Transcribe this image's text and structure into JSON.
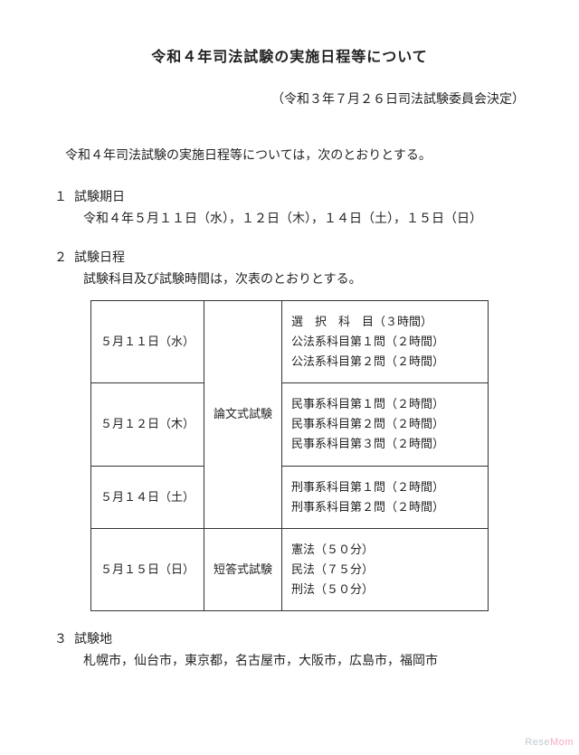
{
  "title": "令和４年司法試験の実施日程等について",
  "subtitle": "（令和３年７月２６日司法試験委員会決定）",
  "intro": "令和４年司法試験の実施日程等については，次のとおりとする。",
  "section1": {
    "num": "１",
    "head": "試験期日",
    "body": "令和４年５月１１日（水），１２日（木），１４日（土），１５日（日）"
  },
  "section2": {
    "num": "２",
    "head": "試験日程",
    "body": "試験科目及び試験時間は，次表のとおりとする。"
  },
  "schedule": {
    "rows": [
      {
        "date": "５月１１日（水）",
        "subjects": [
          "選　択　科　目（３時間）",
          "公法系科目第１問（２時間）",
          "公法系科目第２問（２時間）"
        ]
      },
      {
        "date": "５月１２日（木）",
        "type": "論文式試験",
        "subjects": [
          "民事系科目第１問（２時間）",
          "民事系科目第２問（２時間）",
          "民事系科目第３問（２時間）"
        ]
      },
      {
        "date": "５月１４日（土）",
        "subjects": [
          "刑事系科目第１問（２時間）",
          "刑事系科目第２問（２時間）"
        ]
      },
      {
        "date": "５月１５日（日）",
        "type": "短答式試験",
        "subjects": [
          "憲法（５０分）",
          "民法（７５分）",
          "刑法（５０分）"
        ]
      }
    ]
  },
  "section3": {
    "num": "３",
    "head": "試験地",
    "body": "札幌市，仙台市，東京都，名古屋市，大阪市，広島市，福岡市"
  },
  "watermark": {
    "text1": "Rese",
    "text2": "Mom"
  }
}
